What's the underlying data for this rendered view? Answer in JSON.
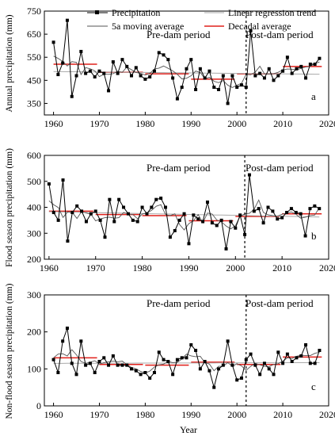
{
  "legend": {
    "precipitation": "Precipitation",
    "moving_avg": "5a moving average",
    "linear_trend": "Linear regression trend",
    "decadal_avg": "Decadal average"
  },
  "colors": {
    "precipitation": "#000000",
    "moving_avg": "#555555",
    "linear_trend": "#aaaaaa",
    "decadal_avg": "#e0201b",
    "dam_line": "#000000"
  },
  "x_title": "Year",
  "chart_data": [
    {
      "type": "line",
      "panel": "a",
      "ylabel": "Annual precipitation (mm)",
      "xlim": [
        1958,
        2020
      ],
      "ylim": [
        300,
        750
      ],
      "yticks": [
        350,
        450,
        550,
        650,
        750
      ],
      "xticks": [
        1960,
        1970,
        1980,
        1990,
        2000,
        2010,
        2020
      ],
      "pre_label": "Pre-dam period",
      "post_label": "Post-dam period",
      "dam_year": 2002,
      "x": [
        1960,
        1961,
        1962,
        1963,
        1964,
        1965,
        1966,
        1967,
        1968,
        1969,
        1970,
        1971,
        1972,
        1973,
        1974,
        1975,
        1976,
        1977,
        1978,
        1979,
        1980,
        1981,
        1982,
        1983,
        1984,
        1985,
        1986,
        1987,
        1988,
        1989,
        1990,
        1991,
        1992,
        1993,
        1994,
        1995,
        1996,
        1997,
        1998,
        1999,
        2000,
        2001,
        2002,
        2003,
        2004,
        2005,
        2006,
        2007,
        2008,
        2009,
        2010,
        2011,
        2012,
        2013,
        2014,
        2015,
        2016,
        2017,
        2018
      ],
      "values": [
        615,
        475,
        525,
        710,
        380,
        470,
        575,
        480,
        490,
        465,
        490,
        480,
        405,
        530,
        480,
        540,
        510,
        470,
        505,
        470,
        455,
        465,
        490,
        570,
        560,
        540,
        460,
        370,
        420,
        500,
        540,
        410,
        500,
        460,
        490,
        420,
        410,
        470,
        350,
        470,
        420,
        430,
        420,
        665,
        470,
        480,
        460,
        500,
        450,
        470,
        490,
        550,
        480,
        500,
        510,
        460,
        520,
        520,
        545
      ],
      "moving_avg": [
        555,
        545,
        532,
        512,
        531,
        528,
        475,
        505,
        500,
        491,
        466,
        477,
        476,
        479,
        489,
        485,
        508,
        496,
        484,
        480,
        473,
        480,
        499,
        503,
        512,
        502,
        491,
        476,
        456,
        459,
        470,
        490,
        484,
        457,
        463,
        446,
        440,
        449,
        429,
        419,
        429,
        437,
        476,
        474,
        486,
        511,
        478,
        477,
        479,
        485,
        495,
        499,
        498,
        495,
        502,
        508,
        510,
        522,
        530
      ],
      "trend": [
        488,
        487.8,
        487.6,
        487.4,
        487.2,
        487,
        486.8,
        486.6,
        486.4,
        486.2,
        486,
        485.8,
        485.6,
        485.4,
        485.2,
        485,
        484.8,
        484.6,
        484.4,
        484.2,
        484,
        483.8,
        483.6,
        483.4,
        483.2,
        483,
        482.8,
        482.6,
        482.4,
        482.2,
        482,
        481.8,
        481.6,
        481.4,
        481.2,
        481,
        480.8,
        480.6,
        480.4,
        480.2,
        480,
        479.8,
        479.6,
        479.4,
        479.2,
        479,
        478.8,
        478.6,
        478.4,
        478.2,
        478,
        477.8,
        477.6,
        477.4,
        477.2,
        477,
        476.8,
        476.6,
        476.4
      ],
      "decadal": [
        [
          1960,
          1969,
          520
        ],
        [
          1970,
          1979,
          485
        ],
        [
          1980,
          1989,
          478
        ],
        [
          1990,
          1999,
          455
        ],
        [
          2000,
          2009,
          478
        ],
        [
          2010,
          2018,
          510
        ]
      ]
    },
    {
      "type": "line",
      "panel": "b",
      "ylabel": "Flood season precipitation (mm)",
      "xlim": [
        1959,
        2020
      ],
      "ylim": [
        200,
        600
      ],
      "yticks": [
        200,
        300,
        400,
        500,
        600
      ],
      "xticks": [
        1960,
        1970,
        1980,
        1990,
        2000,
        2010,
        2020
      ],
      "pre_label": "Pre-dam period",
      "post_label": "Post-dam period",
      "dam_year": 2002,
      "x": [
        1960,
        1961,
        1962,
        1963,
        1964,
        1965,
        1966,
        1967,
        1968,
        1969,
        1970,
        1971,
        1972,
        1973,
        1974,
        1975,
        1976,
        1977,
        1978,
        1979,
        1980,
        1981,
        1982,
        1983,
        1984,
        1985,
        1986,
        1987,
        1988,
        1989,
        1990,
        1991,
        1992,
        1993,
        1994,
        1995,
        1996,
        1997,
        1998,
        1999,
        2000,
        2001,
        2002,
        2003,
        2004,
        2005,
        2006,
        2007,
        2008,
        2009,
        2010,
        2011,
        2012,
        2013,
        2014,
        2015,
        2016,
        2017,
        2018
      ],
      "values": [
        490,
        380,
        350,
        505,
        270,
        380,
        405,
        385,
        345,
        375,
        385,
        350,
        285,
        430,
        345,
        430,
        400,
        375,
        350,
        345,
        400,
        375,
        400,
        430,
        435,
        400,
        285,
        310,
        350,
        375,
        260,
        370,
        355,
        345,
        420,
        340,
        330,
        350,
        240,
        345,
        320,
        370,
        295,
        525,
        385,
        395,
        340,
        400,
        385,
        355,
        360,
        380,
        395,
        380,
        375,
        290,
        395,
        405,
        395
      ],
      "moving_avg": [
        425,
        410,
        399,
        361,
        382,
        380,
        357,
        384,
        378,
        373,
        348,
        355,
        360,
        362,
        358,
        360,
        380,
        374,
        372,
        356,
        374,
        378,
        388,
        404,
        410,
        372,
        368,
        375,
        334,
        313,
        337,
        348,
        372,
        340,
        378,
        374,
        351,
        344,
        328,
        317,
        329,
        365,
        375,
        377,
        392,
        428,
        380,
        371,
        368,
        366,
        373,
        378,
        382,
        373,
        358,
        362,
        368,
        370,
        398
      ],
      "trend": [
        383,
        382.7,
        382.3,
        382,
        381.6,
        381.3,
        380.9,
        380.6,
        380.2,
        379.9,
        379.5,
        379.2,
        378.8,
        378.5,
        378.1,
        377.8,
        377.4,
        377.1,
        376.7,
        376.4,
        376,
        375.7,
        375.3,
        375,
        374.6,
        374.3,
        373.9,
        373.6,
        373.2,
        372.9,
        372.5,
        372.2,
        371.8,
        371.5,
        371.1,
        370.8,
        370.4,
        370.1,
        369.7,
        369.4,
        369,
        368.7,
        368.3,
        368,
        367.6,
        367.3,
        366.9,
        366.6,
        366.2,
        365.9,
        365.5,
        365.2,
        364.8,
        364.5,
        364.1,
        363.8,
        363.4,
        363.1,
        362.7
      ],
      "decadal": [
        [
          1960,
          1969,
          385
        ],
        [
          1970,
          1979,
          372
        ],
        [
          1980,
          1989,
          368
        ],
        [
          1990,
          1999,
          348
        ],
        [
          2000,
          2009,
          365
        ],
        [
          2010,
          2018,
          375
        ]
      ]
    },
    {
      "type": "line",
      "panel": "c",
      "ylabel": "Non-flood season precipitation (mm)",
      "xlim": [
        1958,
        2020
      ],
      "ylim": [
        0,
        300
      ],
      "yticks": [
        0,
        100,
        200,
        300
      ],
      "xticks": [
        1960,
        1970,
        1980,
        1990,
        2000,
        2010,
        2020
      ],
      "pre_label": "Pre-dam period",
      "post_label": "Post-dam period",
      "dam_year": 2002,
      "x": [
        1960,
        1961,
        1962,
        1963,
        1964,
        1965,
        1966,
        1967,
        1968,
        1969,
        1970,
        1971,
        1972,
        1973,
        1974,
        1975,
        1976,
        1977,
        1978,
        1979,
        1980,
        1981,
        1982,
        1983,
        1984,
        1985,
        1986,
        1987,
        1988,
        1989,
        1990,
        1991,
        1992,
        1993,
        1994,
        1995,
        1996,
        1997,
        1998,
        1999,
        2000,
        2001,
        2002,
        2003,
        2004,
        2005,
        2006,
        2007,
        2008,
        2009,
        2010,
        2011,
        2012,
        2013,
        2014,
        2015,
        2016,
        2017,
        2018
      ],
      "values": [
        125,
        90,
        175,
        210,
        115,
        85,
        175,
        110,
        115,
        90,
        120,
        130,
        110,
        135,
        110,
        110,
        110,
        100,
        95,
        85,
        90,
        75,
        90,
        145,
        125,
        120,
        85,
        125,
        130,
        130,
        165,
        150,
        100,
        120,
        95,
        50,
        100,
        110,
        175,
        110,
        70,
        75,
        125,
        140,
        110,
        85,
        115,
        100,
        85,
        145,
        115,
        140,
        120,
        130,
        135,
        165,
        115,
        115,
        150
      ],
      "moving_avg": [
        130,
        140,
        141,
        135,
        152,
        138,
        120,
        115,
        118,
        122,
        113,
        117,
        119,
        121,
        119,
        121,
        111,
        104,
        100,
        93,
        89,
        94,
        105,
        111,
        113,
        120,
        117,
        118,
        127,
        140,
        135,
        133,
        134,
        117,
        113,
        95,
        107,
        107,
        117,
        107,
        114,
        108,
        96,
        107,
        115,
        111,
        107,
        106,
        112,
        114,
        121,
        130,
        128,
        134,
        137,
        136,
        136,
        142,
        145
      ],
      "trend": [
        115,
        115,
        115,
        115.1,
        115.1,
        115.1,
        115.2,
        115.2,
        115.2,
        115.3,
        115.3,
        115.3,
        115.4,
        115.4,
        115.4,
        115.5,
        115.5,
        115.5,
        115.6,
        115.6,
        115.6,
        115.7,
        115.7,
        115.7,
        115.8,
        115.8,
        115.8,
        115.9,
        115.9,
        115.9,
        116,
        116,
        116,
        116.1,
        116.1,
        116.1,
        116.2,
        116.2,
        116.2,
        116.3,
        116.3,
        116.3,
        116.4,
        116.4,
        116.4,
        116.5,
        116.5,
        116.5,
        116.6,
        116.6,
        116.6,
        116.7,
        116.7,
        116.7,
        116.8,
        116.8,
        116.8,
        116.9,
        116.9
      ],
      "decadal": [
        [
          1960,
          1969,
          130
        ],
        [
          1970,
          1979,
          112
        ],
        [
          1980,
          1989,
          110
        ],
        [
          1990,
          1999,
          118
        ],
        [
          2000,
          2009,
          112
        ],
        [
          2010,
          2018,
          132
        ]
      ]
    }
  ]
}
